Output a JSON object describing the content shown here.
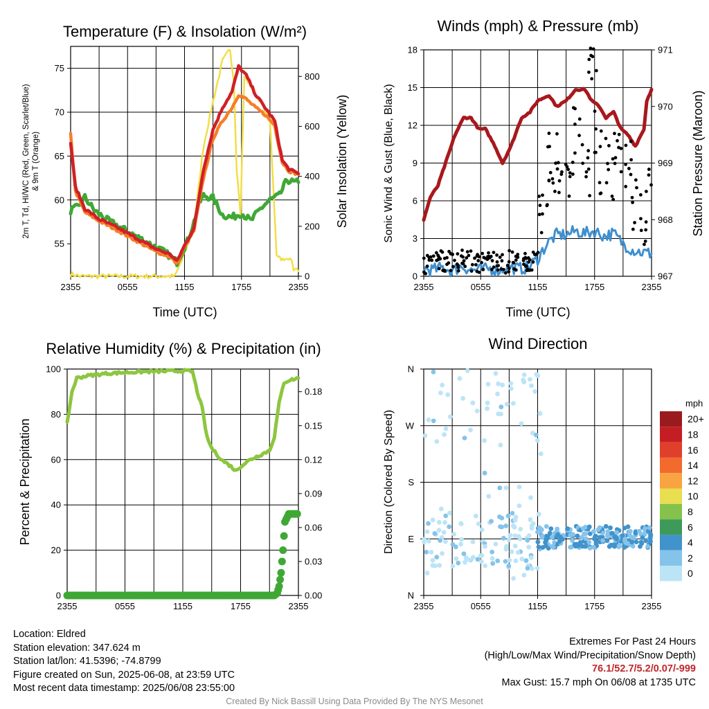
{
  "panels": {
    "temp": {
      "title": "Temperature (F) & Insolation (W/m²)",
      "xlabel": "Time (UTC)",
      "ylabel_left_line1": "2m T, Td, HI/WC (Red, Green, Scarlet/Blue)",
      "ylabel_left_line2": "& 9m T (Orange)",
      "ylabel_right": "Solar Insolation (Yellow)"
    },
    "wind": {
      "title": "Winds (mph) & Pressure (mb)",
      "xlabel": "Time (UTC)",
      "ylabel_left": "Sonic Wind & Gust (Blue, Black)",
      "ylabel_right": "Station Pressure (Maroon)"
    },
    "rh": {
      "title": "Relative Humidity (%) & Precipitation (in)",
      "ylabel_left": "Percent & Precipitation"
    },
    "dir": {
      "title": "Wind Direction",
      "ylabel_left": "Direction (Colored By Speed)",
      "legend_title": "mph"
    }
  },
  "colors": {
    "temp": "#cf2027",
    "dewpoint": "#3fa835",
    "nine_m": "#f47e2a",
    "insolation": "#f2de47",
    "pressure": "#a8181d",
    "wind": "#3f8fce",
    "gust": "#000000",
    "rh": "#8dc63f",
    "precip": "#3fa835"
  },
  "chart_data": [
    {
      "id": "temp",
      "type": "line",
      "title": "Temperature (F) & Insolation (W/m²)",
      "xlabel": "Time (UTC)",
      "x_ticks": [
        "2355",
        "0555",
        "1155",
        "1755",
        "2355"
      ],
      "x_hours": [
        0,
        3,
        6,
        9,
        12,
        15,
        18,
        21,
        24
      ],
      "y_left_ticks": [
        55,
        60,
        65,
        70,
        75
      ],
      "y_left_range": [
        51.3,
        77.5
      ],
      "y_right_ticks": [
        0,
        200,
        400,
        600,
        800
      ],
      "y_right_range": [
        0,
        920
      ],
      "series": [
        {
          "name": "2m T",
          "axis": "left",
          "points": [
            [
              0,
              66.5
            ],
            [
              0.5,
              61.5
            ],
            [
              1.5,
              59.0
            ],
            [
              3,
              57.8
            ],
            [
              5,
              56.8
            ],
            [
              7,
              55.6
            ],
            [
              9,
              54.4
            ],
            [
              10.5,
              53.8
            ],
            [
              11.2,
              53.0
            ],
            [
              12,
              54.8
            ],
            [
              13,
              56.8
            ],
            [
              14,
              63.5
            ],
            [
              15,
              68.0
            ],
            [
              16,
              70.5
            ],
            [
              17,
              72.3
            ],
            [
              17.7,
              75.2
            ],
            [
              18.5,
              74.2
            ],
            [
              19.5,
              72.0
            ],
            [
              20.5,
              70.5
            ],
            [
              21.5,
              69.0
            ],
            [
              22.3,
              64.5
            ],
            [
              23,
              63.5
            ],
            [
              24,
              63.0
            ]
          ]
        },
        {
          "name": "9m T",
          "axis": "left",
          "points": [
            [
              0,
              67.5
            ],
            [
              0.5,
              61.0
            ],
            [
              1.5,
              58.6
            ],
            [
              3,
              57.6
            ],
            [
              5,
              56.5
            ],
            [
              7,
              55.3
            ],
            [
              9,
              54.1
            ],
            [
              10.5,
              53.5
            ],
            [
              11.2,
              52.7
            ],
            [
              12,
              54.6
            ],
            [
              13,
              56.5
            ],
            [
              14,
              62.5
            ],
            [
              15,
              67.0
            ],
            [
              16,
              69.0
            ],
            [
              17,
              70.5
            ],
            [
              17.7,
              72.0
            ],
            [
              18.5,
              71.5
            ],
            [
              19.5,
              70.5
            ],
            [
              20.5,
              69.7
            ],
            [
              21.5,
              68.5
            ],
            [
              22.3,
              64.3
            ],
            [
              23,
              63.3
            ],
            [
              24,
              62.9
            ]
          ]
        },
        {
          "name": "Td",
          "axis": "left",
          "points": [
            [
              0,
              58.8
            ],
            [
              0.8,
              59.2
            ],
            [
              1.5,
              60.3
            ],
            [
              2.5,
              58.8
            ],
            [
              4,
              57.6
            ],
            [
              6,
              56.4
            ],
            [
              8,
              55.2
            ],
            [
              9.5,
              54.3
            ],
            [
              10.5,
              53.6
            ],
            [
              11.2,
              52.9
            ],
            [
              12.3,
              55.3
            ],
            [
              13,
              57.5
            ],
            [
              13.5,
              59.5
            ],
            [
              14,
              60.5
            ],
            [
              15,
              60.2
            ],
            [
              16,
              58.3
            ],
            [
              17,
              58.0
            ],
            [
              18,
              58.5
            ],
            [
              19,
              57.6
            ],
            [
              20,
              59.0
            ],
            [
              21,
              60.0
            ],
            [
              22,
              60.5
            ],
            [
              22.8,
              62.3
            ],
            [
              23.5,
              62.0
            ],
            [
              24,
              62.0
            ]
          ]
        },
        {
          "name": "Solar Insolation",
          "axis": "right",
          "points": [
            [
              0,
              10
            ],
            [
              1,
              0
            ],
            [
              11,
              0
            ],
            [
              12,
              90
            ],
            [
              13,
              200
            ],
            [
              14,
              520
            ],
            [
              15,
              700
            ],
            [
              16,
              860
            ],
            [
              16.8,
              910
            ],
            [
              17.2,
              780
            ],
            [
              17.5,
              430
            ],
            [
              17.9,
              250
            ],
            [
              18.3,
              800
            ],
            [
              19,
              760
            ],
            [
              20,
              700
            ],
            [
              21,
              620
            ],
            [
              21.7,
              90
            ],
            [
              22.5,
              60
            ],
            [
              23.1,
              80
            ],
            [
              23.5,
              30
            ],
            [
              24,
              20
            ]
          ]
        }
      ]
    },
    {
      "id": "wind",
      "type": "line",
      "title": "Winds (mph) & Pressure (mb)",
      "xlabel": "Time (UTC)",
      "x_ticks": [
        "2355",
        "0555",
        "1155",
        "1755",
        "2355"
      ],
      "y_left_ticks": [
        0,
        3,
        6,
        9,
        12,
        15,
        18
      ],
      "y_left_range": [
        0,
        18
      ],
      "y_right_ticks": [
        967,
        968,
        969,
        970,
        971
      ],
      "y_right_range": [
        967,
        971
      ],
      "series": [
        {
          "name": "Station Pressure",
          "axis": "right",
          "points": [
            [
              0,
              968.0
            ],
            [
              0.7,
              968.4
            ],
            [
              1.5,
              968.6
            ],
            [
              2.5,
              969.1
            ],
            [
              3.3,
              969.5
            ],
            [
              4.2,
              969.8
            ],
            [
              5,
              969.8
            ],
            [
              5.8,
              969.6
            ],
            [
              6.5,
              969.6
            ],
            [
              7.5,
              969.3
            ],
            [
              8.3,
              969.0
            ],
            [
              9.2,
              969.3
            ],
            [
              10.3,
              969.8
            ],
            [
              11.2,
              969.9
            ],
            [
              12,
              970.1
            ],
            [
              13.2,
              970.2
            ],
            [
              14,
              970.0
            ],
            [
              15,
              970.1
            ],
            [
              16,
              970.3
            ],
            [
              17,
              970.3
            ],
            [
              17.7,
              970.1
            ],
            [
              18.5,
              970.0
            ],
            [
              19.2,
              969.8
            ],
            [
              20,
              969.9
            ],
            [
              20.8,
              969.6
            ],
            [
              21.5,
              969.5
            ],
            [
              22.3,
              969.3
            ],
            [
              23.2,
              969.6
            ],
            [
              23.5,
              970.1
            ],
            [
              24,
              970.3
            ]
          ]
        },
        {
          "name": "Sonic Wind",
          "axis": "left",
          "points": [
            [
              0,
              0.6
            ],
            [
              1,
              0.5
            ],
            [
              2,
              0.7
            ],
            [
              3,
              0.4
            ],
            [
              4,
              0.8
            ],
            [
              5,
              0.5
            ],
            [
              6,
              0.5
            ],
            [
              7,
              0.6
            ],
            [
              8,
              0.5
            ],
            [
              9,
              0.7
            ],
            [
              10,
              0.6
            ],
            [
              11,
              0.7
            ],
            [
              12,
              1.4
            ],
            [
              13,
              2.6
            ],
            [
              14,
              3.3
            ],
            [
              15,
              3.3
            ],
            [
              16,
              3.6
            ],
            [
              17,
              3.4
            ],
            [
              18,
              3.6
            ],
            [
              19,
              3.2
            ],
            [
              20,
              3.4
            ],
            [
              21,
              2.6
            ],
            [
              22,
              2.1
            ],
            [
              23,
              1.9
            ],
            [
              24,
              1.8
            ]
          ]
        },
        {
          "name": "Gust",
          "axis": "left",
          "points": [
            [
              0.5,
              1.0
            ],
            [
              1.5,
              1.3
            ],
            [
              2.5,
              1.2
            ],
            [
              3.5,
              1.1
            ],
            [
              4.5,
              1.4
            ],
            [
              5.5,
              1.0
            ],
            [
              6.5,
              1.2
            ],
            [
              7.5,
              1.3
            ],
            [
              8.5,
              1.0
            ],
            [
              9.5,
              1.3
            ],
            [
              10.5,
              1.1
            ],
            [
              11.5,
              1.2
            ],
            [
              12.5,
              3.5
            ],
            [
              13.2,
              8.5
            ],
            [
              14,
              9.0
            ],
            [
              15,
              8.5
            ],
            [
              16,
              10.5
            ],
            [
              17,
              9.0
            ],
            [
              17.7,
              15.7
            ],
            [
              18.5,
              9.5
            ],
            [
              19.5,
              8.5
            ],
            [
              20.5,
              9.0
            ],
            [
              21.5,
              8.0
            ],
            [
              22.5,
              6.5
            ],
            [
              23.5,
              5.5
            ]
          ]
        }
      ]
    },
    {
      "id": "rh",
      "type": "line",
      "title": "Relative Humidity (%) & Precipitation (in)",
      "x_ticks": [
        "2355",
        "0555",
        "1155",
        "1755",
        "2355"
      ],
      "y_left_ticks": [
        0,
        20,
        40,
        60,
        80,
        100
      ],
      "y_left_range": [
        0,
        100
      ],
      "y_right_ticks": [
        "0.00",
        "0.03",
        "0.06",
        "0.09",
        "0.12",
        "0.15",
        "0.18"
      ],
      "y_right_range": [
        0,
        0.2
      ],
      "series": [
        {
          "name": "Relative Humidity",
          "axis": "left",
          "points": [
            [
              0,
              76
            ],
            [
              0.5,
              90
            ],
            [
              1,
              96
            ],
            [
              2,
              97
            ],
            [
              4,
              98
            ],
            [
              6,
              98.5
            ],
            [
              8,
              98.8
            ],
            [
              10,
              99
            ],
            [
              12,
              99.2
            ],
            [
              13,
              99
            ],
            [
              13.5,
              90
            ],
            [
              14,
              83
            ],
            [
              14.5,
              70
            ],
            [
              15,
              65
            ],
            [
              16,
              60
            ],
            [
              17,
              57
            ],
            [
              17.5,
              55
            ],
            [
              18,
              57
            ],
            [
              19,
              60
            ],
            [
              20,
              62
            ],
            [
              21,
              64
            ],
            [
              21.5,
              70
            ],
            [
              22,
              85
            ],
            [
              22.5,
              94
            ],
            [
              23,
              95
            ],
            [
              24,
              96
            ]
          ]
        },
        {
          "name": "Precipitation",
          "axis": "right",
          "points": [
            [
              0,
              0
            ],
            [
              21.5,
              0
            ],
            [
              21.8,
              0.002
            ],
            [
              22.0,
              0.008
            ],
            [
              22.2,
              0.02
            ],
            [
              22.4,
              0.04
            ],
            [
              22.6,
              0.065
            ],
            [
              23,
              0.072
            ],
            [
              24,
              0.072
            ]
          ]
        }
      ]
    },
    {
      "id": "dir",
      "type": "scatter",
      "title": "Wind Direction",
      "x_ticks": [
        "2355",
        "0555",
        "1155",
        "1755",
        "2355"
      ],
      "y_ticks": [
        "N",
        "W",
        "S",
        "E",
        "N"
      ],
      "y_degrees": [
        360,
        270,
        180,
        90,
        0
      ],
      "legend_title": "mph",
      "legend_bins": [
        "0",
        "2",
        "4",
        "6",
        "8",
        "10",
        "12",
        "14",
        "16",
        "18",
        "20+"
      ],
      "legend_colors": [
        "#bce4f7",
        "#86c3ea",
        "#4193cb",
        "#3d9a5a",
        "#84c24c",
        "#e9de4f",
        "#f9a440",
        "#f26a2e",
        "#e0402b",
        "#c41e24",
        "#991b1e"
      ],
      "notes": "Before ~1155 UTC light winds scattered across all directions; after ~1155 UTC steadier winds clustered near E (roughly 80-100 deg) at 2-4 mph."
    }
  ],
  "footer": {
    "location": "Location: Eldred",
    "elevation": "Station elevation: 347.624 m",
    "latlon": "Station lat/lon: 41.5396; -74.8799",
    "created": "Figure created on Sun, 2025-06-08, at 23:59 UTC",
    "recent": "Most recent data timestamp: 2025/06/08 23:55:00",
    "extremes_title": "Extremes For Past 24 Hours",
    "extremes_subtitle": "(High/Low/Max Wind/Precipitation/Snow Depth)",
    "extremes_values": "76.1/52.7/5.2/0.07/-999",
    "max_gust": "Max Gust: 15.7 mph On 06/08 at 1735 UTC",
    "credit": "Created By Nick Bassill Using Data Provided By The NYS Mesonet"
  }
}
